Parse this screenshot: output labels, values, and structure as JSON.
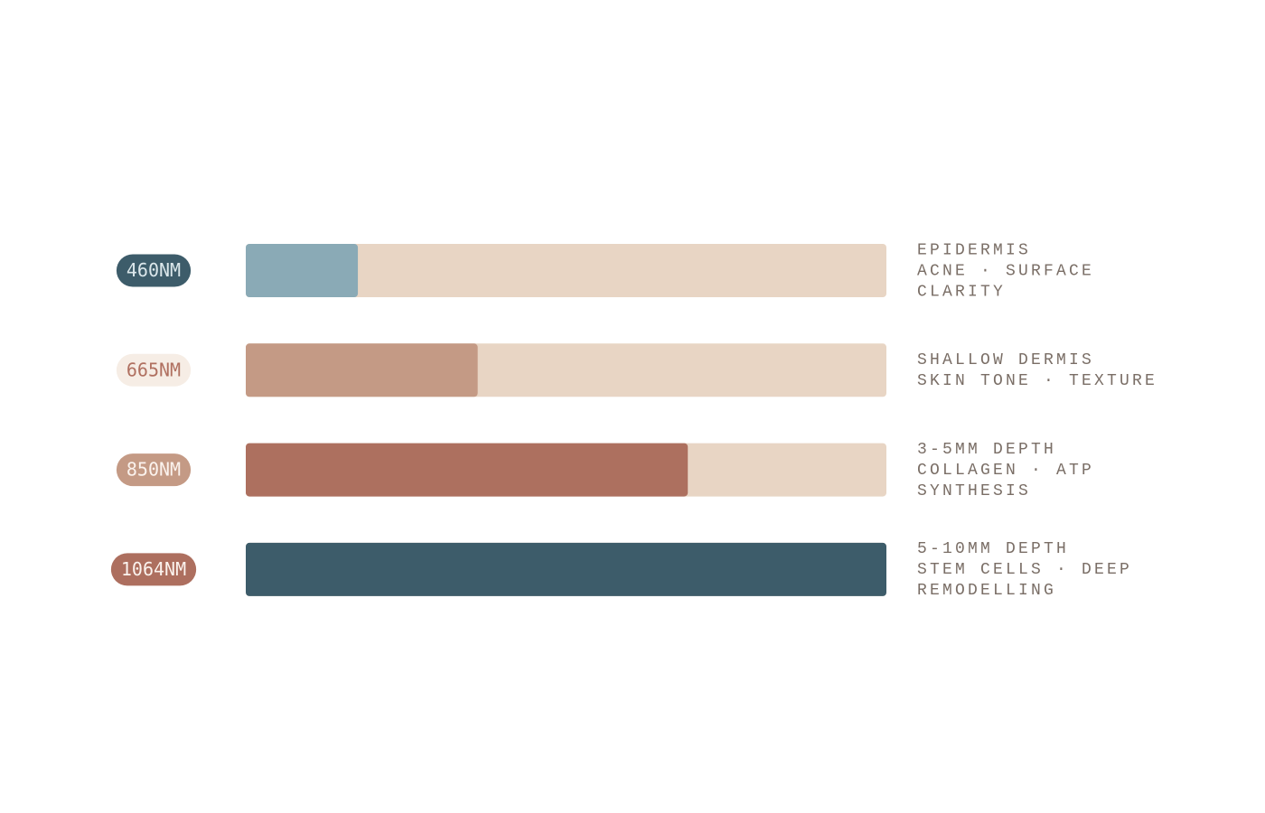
{
  "chart_data": {
    "type": "bar",
    "orientation": "horizontal",
    "categories": [
      "460NM",
      "665NM",
      "850NM",
      "1064NM"
    ],
    "values": [
      17.5,
      36.2,
      69,
      100
    ],
    "xlim": [
      0,
      100
    ],
    "colors": [
      "#8aaab6",
      "#c49a85",
      "#ad705f",
      "#3d5c6a"
    ],
    "track_color": "#e8d5c4",
    "label_colors": [
      "#3d5c6a",
      "#f6ede5",
      "#c49a85",
      "#ad6f5f"
    ],
    "label_text_colors": [
      "#dbe7eb",
      "#b07060",
      "#fbf3ee",
      "#fbf3ee"
    ],
    "descriptions": [
      [
        "EPIDERMIS",
        "ACNE · SURFACE",
        "CLARITY"
      ],
      [
        "SHALLOW DERMIS",
        "SKIN TONE · TEXTURE"
      ],
      [
        "3-5MM DEPTH",
        "COLLAGEN · ATP",
        "SYNTHESIS"
      ],
      [
        "5-10MM DEPTH",
        "STEM CELLS · DEEP",
        "REMODELLING"
      ]
    ]
  }
}
